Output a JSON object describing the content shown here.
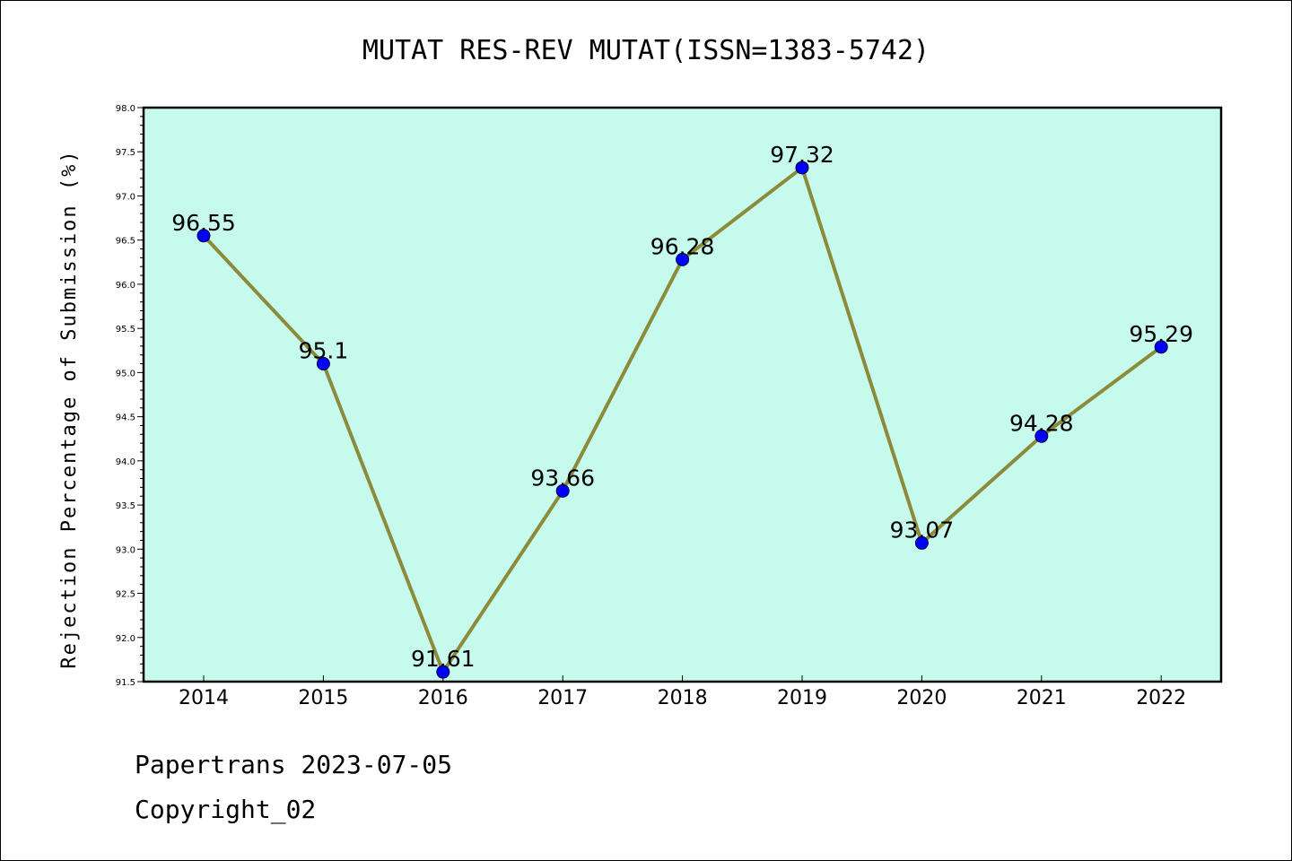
{
  "chart_data": {
    "type": "line",
    "title": "MUTAT RES-REV MUTAT(ISSN=1383-5742)",
    "xlabel": "",
    "ylabel": "Rejection Percentage of Submission (%)",
    "categories": [
      "2014",
      "2015",
      "2016",
      "2017",
      "2018",
      "2019",
      "2020",
      "2021",
      "2022"
    ],
    "series": [
      {
        "values": [
          96.55,
          95.1,
          91.61,
          93.66,
          96.28,
          97.32,
          93.07,
          94.28,
          95.29
        ],
        "labels": [
          "96.55",
          "95.1",
          "91.61",
          "93.66",
          "96.28",
          "97.32",
          "93.07",
          "94.28",
          "95.29"
        ]
      }
    ],
    "ylim": [
      91.5,
      98.0
    ],
    "yticks": [
      "91.5",
      "92.0",
      "92.5",
      "93.0",
      "93.5",
      "94.0",
      "94.5",
      "95.0",
      "95.5",
      "96.0",
      "96.5",
      "97.0",
      "97.5",
      "98.0"
    ],
    "grid": false,
    "colors": {
      "plot_background": "#c6faed",
      "line": "#8b8b3a",
      "marker": "#0000ff"
    }
  },
  "footer": {
    "line1": "Papertrans 2023-07-05",
    "line2": "Copyright_02"
  }
}
